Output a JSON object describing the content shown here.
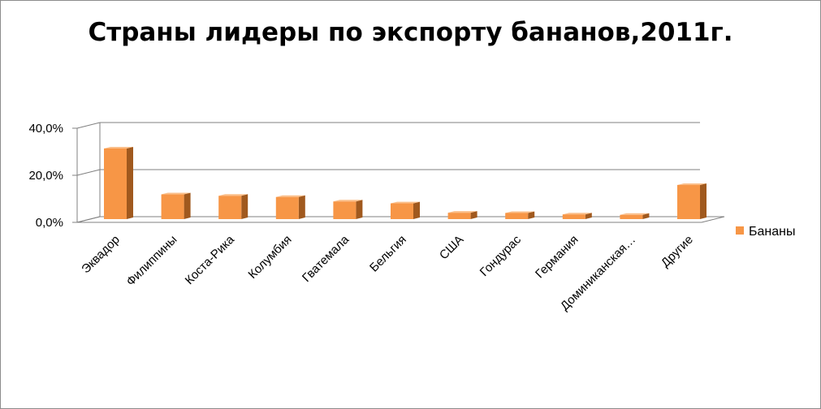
{
  "chart_data": {
    "type": "bar",
    "title": "Страны лидеры по экспорту бананов,2011г.",
    "categories": [
      "Эквадор",
      "Филиппины",
      "Коста-Рика",
      "Колумбия",
      "Гватемала",
      "Бельгия",
      "США",
      "Гондурас",
      "Германия",
      "Доминиканская…",
      "Другие"
    ],
    "series": [
      {
        "name": "Бананы",
        "values": [
          30.0,
          10.5,
          9.9,
          9.4,
          7.5,
          6.7,
          2.7,
          2.6,
          2.0,
          1.8,
          14.5
        ]
      }
    ],
    "y_ticks": [
      "0,0%",
      "20,0%",
      "40,0%"
    ],
    "ylim": [
      0,
      40
    ],
    "grid": true,
    "legend": "right",
    "colors": {
      "bar_front": "#f79646",
      "bar_side": "#a0591e",
      "bar_top": "#fbbf8a",
      "grid": "#808080"
    }
  }
}
